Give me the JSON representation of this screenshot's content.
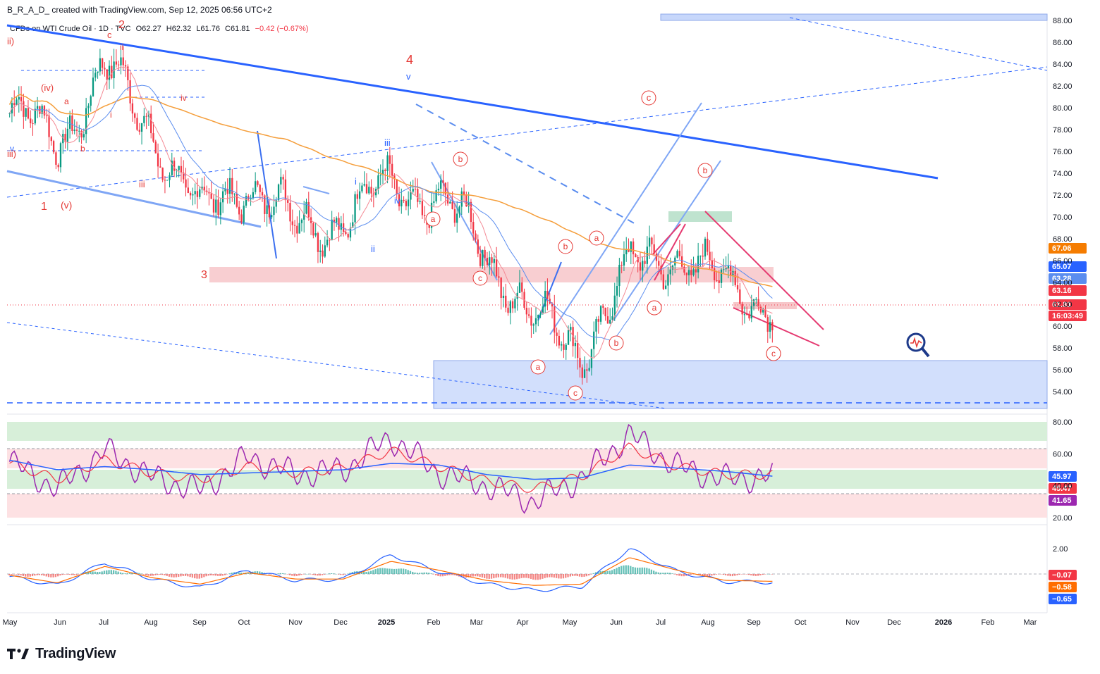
{
  "header": {
    "credit": "B_R_A_D_ created with TradingView.com, Sep 12, 2025 06:56 UTC+2",
    "symbol": "CFDs on WTI Crude Oil · 1D · TVC",
    "open": "O62.27",
    "high": "H62.32",
    "low": "L61.76",
    "close": "C61.81",
    "change": "−0.42 (−0.67%)"
  },
  "footer": {
    "brand": "TradingView"
  },
  "colors": {
    "up": "#089981",
    "down": "#f23645",
    "trend_blue": "#2962ff",
    "ma_orange": "#f59e3b",
    "zone_red": "#f7c6c9",
    "zone_blue": "#c7d7fb",
    "zone_green": "#d7efd9",
    "rsi_purple": "#9c27b0",
    "macd_blue": "#2962ff",
    "signal_orange": "#ff6d00"
  },
  "chart_data": [
    {
      "type": "line",
      "title": "CFDs on WTI Crude Oil",
      "x": [
        "May",
        "Jun",
        "Jul",
        "Aug",
        "Sep",
        "Oct",
        "Nov",
        "Dec",
        "2025",
        "Feb",
        "Mar",
        "Apr",
        "May",
        "Jun",
        "Jul",
        "Aug",
        "Sep"
      ],
      "series": [
        {
          "values": [
            79.5,
            77.0,
            83.5,
            78.0,
            70.0,
            73.5,
            69.0,
            70.0,
            73.0,
            71.5,
            67.0,
            60.5,
            58.0,
            65.0,
            67.0,
            63.5,
            62.5
          ]
        }
      ],
      "ylim": [
        52,
        88
      ],
      "y_ticks": [
        "88.00",
        "86.00",
        "84.00",
        "82.00",
        "80.00",
        "78.00",
        "76.00",
        "74.00",
        "72.00",
        "70.00",
        "68.00",
        "66.00",
        "64.00",
        "62.00",
        "60.00",
        "58.00",
        "56.00",
        "54.00"
      ],
      "x_ticks": [
        "May",
        "Jun",
        "Jul",
        "Aug",
        "Sep",
        "Oct",
        "Nov",
        "Dec",
        "2025",
        "Feb",
        "Mar",
        "Apr",
        "May",
        "Jun",
        "Jul",
        "Aug",
        "Sep",
        "Oct",
        "Nov",
        "Dec",
        "2026",
        "Feb",
        "Mar"
      ],
      "price_badges": [
        {
          "label": "67.06",
          "color": "#f57c00"
        },
        {
          "label": "65.07",
          "color": "#2962ff"
        },
        {
          "label": "63.28",
          "color": "#5b8def"
        },
        {
          "label": "63.16",
          "color": "#f23645"
        },
        {
          "label": "61.81",
          "color": "#f23645"
        },
        {
          "label": "16:03:49",
          "color": "#f23645"
        }
      ],
      "wave_labels": [
        "ii)",
        "c",
        "2",
        "ii",
        "(iv)",
        "a",
        "i",
        "b",
        "iv",
        "v",
        "iii)",
        "iii",
        "1",
        "(v)",
        "3",
        "4",
        "v",
        "iii",
        "i",
        "iv",
        "ii",
        "c",
        "b",
        "a",
        "c",
        "b",
        "a",
        "b",
        "a",
        "a",
        "c",
        "c",
        "b",
        "a",
        "c"
      ]
    },
    {
      "type": "line",
      "title": "RSI",
      "y_ticks": [
        "80.00",
        "60.00",
        "40.00",
        "20.00"
      ],
      "ylim": [
        15,
        85
      ],
      "series": [
        {
          "values": [
            55,
            38,
            62,
            45,
            37,
            58,
            47,
            50,
            70,
            48,
            40,
            30,
            45,
            72,
            52,
            44,
            46
          ]
        },
        {
          "values": [
            54,
            44,
            56,
            48,
            44,
            52,
            48,
            51,
            62,
            52,
            43,
            38,
            46,
            64,
            52,
            47,
            47
          ]
        },
        {
          "values": [
            56,
            50,
            52,
            50,
            47,
            48,
            49,
            50,
            54,
            53,
            47,
            44,
            45,
            53,
            51,
            49,
            46
          ]
        }
      ],
      "badges": [
        {
          "label": "45.97",
          "color": "#2962ff"
        },
        {
          "label": "45.47",
          "color": "#f23645"
        },
        {
          "label": "41.65",
          "color": "#9c27b0"
        }
      ]
    },
    {
      "type": "bar",
      "title": "MACD",
      "y_ticks": [
        "2.00"
      ],
      "ylim": [
        -2,
        3
      ],
      "series": [
        {
          "values": [
            -0.2,
            -0.9,
            0.9,
            -0.4,
            -1.1,
            0.3,
            -0.5,
            -0.4,
            1.5,
            0.2,
            -0.8,
            -1.3,
            -1.0,
            2.0,
            0.2,
            -0.6,
            -0.65
          ]
        },
        {
          "values": [
            -0.1,
            -0.7,
            0.6,
            -0.3,
            -0.8,
            0.1,
            -0.4,
            -0.4,
            1.0,
            0.3,
            -0.5,
            -0.9,
            -0.8,
            1.3,
            0.3,
            -0.5,
            -0.58
          ]
        },
        {
          "values": [
            -0.1,
            -0.2,
            0.3,
            -0.1,
            -0.3,
            0.2,
            -0.1,
            0.0,
            0.5,
            -0.1,
            -0.3,
            -0.4,
            -0.2,
            0.7,
            -0.1,
            -0.1,
            -0.07
          ]
        }
      ],
      "badges": [
        {
          "label": "−0.07",
          "color": "#f23645"
        },
        {
          "label": "−0.58",
          "color": "#ff6d00"
        },
        {
          "label": "−0.65",
          "color": "#2962ff"
        }
      ]
    }
  ]
}
